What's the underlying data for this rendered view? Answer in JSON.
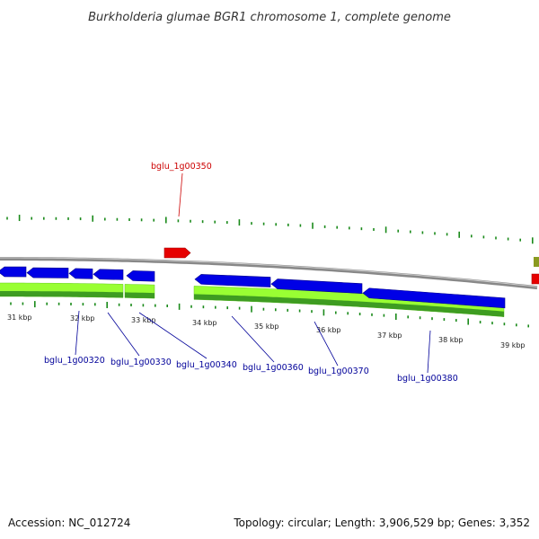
{
  "title": "Burkholderia glumae BGR1 chromosome 1, complete genome",
  "accession": "Accession: NC_012724",
  "summary": "Topology: circular; Length: 3,906,529 bp; Genes: 3,352",
  "colors": {
    "backbone": "#888888",
    "forward_cds": "#e60000",
    "reverse_cds": "#0000e6",
    "gc_skew_light": "#99ff33",
    "gc_skew_dark": "#2e8b1e",
    "tick": "#1a8a1a",
    "label_blue": "#000099",
    "label_red": "#cc0000"
  },
  "ticks": [
    {
      "label": "31 kbp"
    },
    {
      "label": "32 kbp"
    },
    {
      "label": "33 kbp"
    },
    {
      "label": "34 kbp"
    },
    {
      "label": "35 kbp"
    },
    {
      "label": "36 kbp"
    },
    {
      "label": "37 kbp"
    },
    {
      "label": "38 kbp"
    },
    {
      "label": "39 kbp"
    }
  ],
  "genes": [
    {
      "name": "bglu_1g00320",
      "strand": "reverse"
    },
    {
      "name": "bglu_1g00330",
      "strand": "reverse"
    },
    {
      "name": "bglu_1g00340",
      "strand": "reverse"
    },
    {
      "name": "bglu_1g00350",
      "strand": "forward"
    },
    {
      "name": "bglu_1g00360",
      "strand": "reverse"
    },
    {
      "name": "bglu_1g00370",
      "strand": "reverse"
    },
    {
      "name": "bglu_1g00380",
      "strand": "reverse"
    }
  ]
}
